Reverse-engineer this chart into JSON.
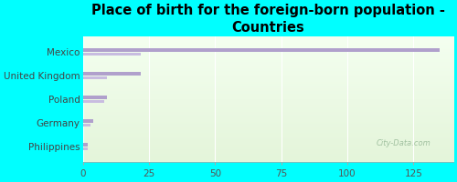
{
  "title": "Place of birth for the foreign-born population -\nCountries",
  "categories": [
    "Mexico",
    "United Kingdom",
    "Poland",
    "Germany",
    "Philippines"
  ],
  "values1": [
    135,
    22,
    9,
    4,
    2
  ],
  "values2": [
    22,
    9,
    8,
    3,
    2
  ],
  "bar_color1": "#b0a0cc",
  "bar_color2": "#c8bce0",
  "background_color": "#00ffff",
  "plot_bg_top": "#e4f5da",
  "plot_bg_bottom": "#f4fff0",
  "xlim": [
    0,
    140
  ],
  "xticks": [
    0,
    25,
    50,
    75,
    100,
    125
  ],
  "title_fontsize": 10.5,
  "tick_fontsize": 7.5,
  "watermark": "City-Data.com"
}
